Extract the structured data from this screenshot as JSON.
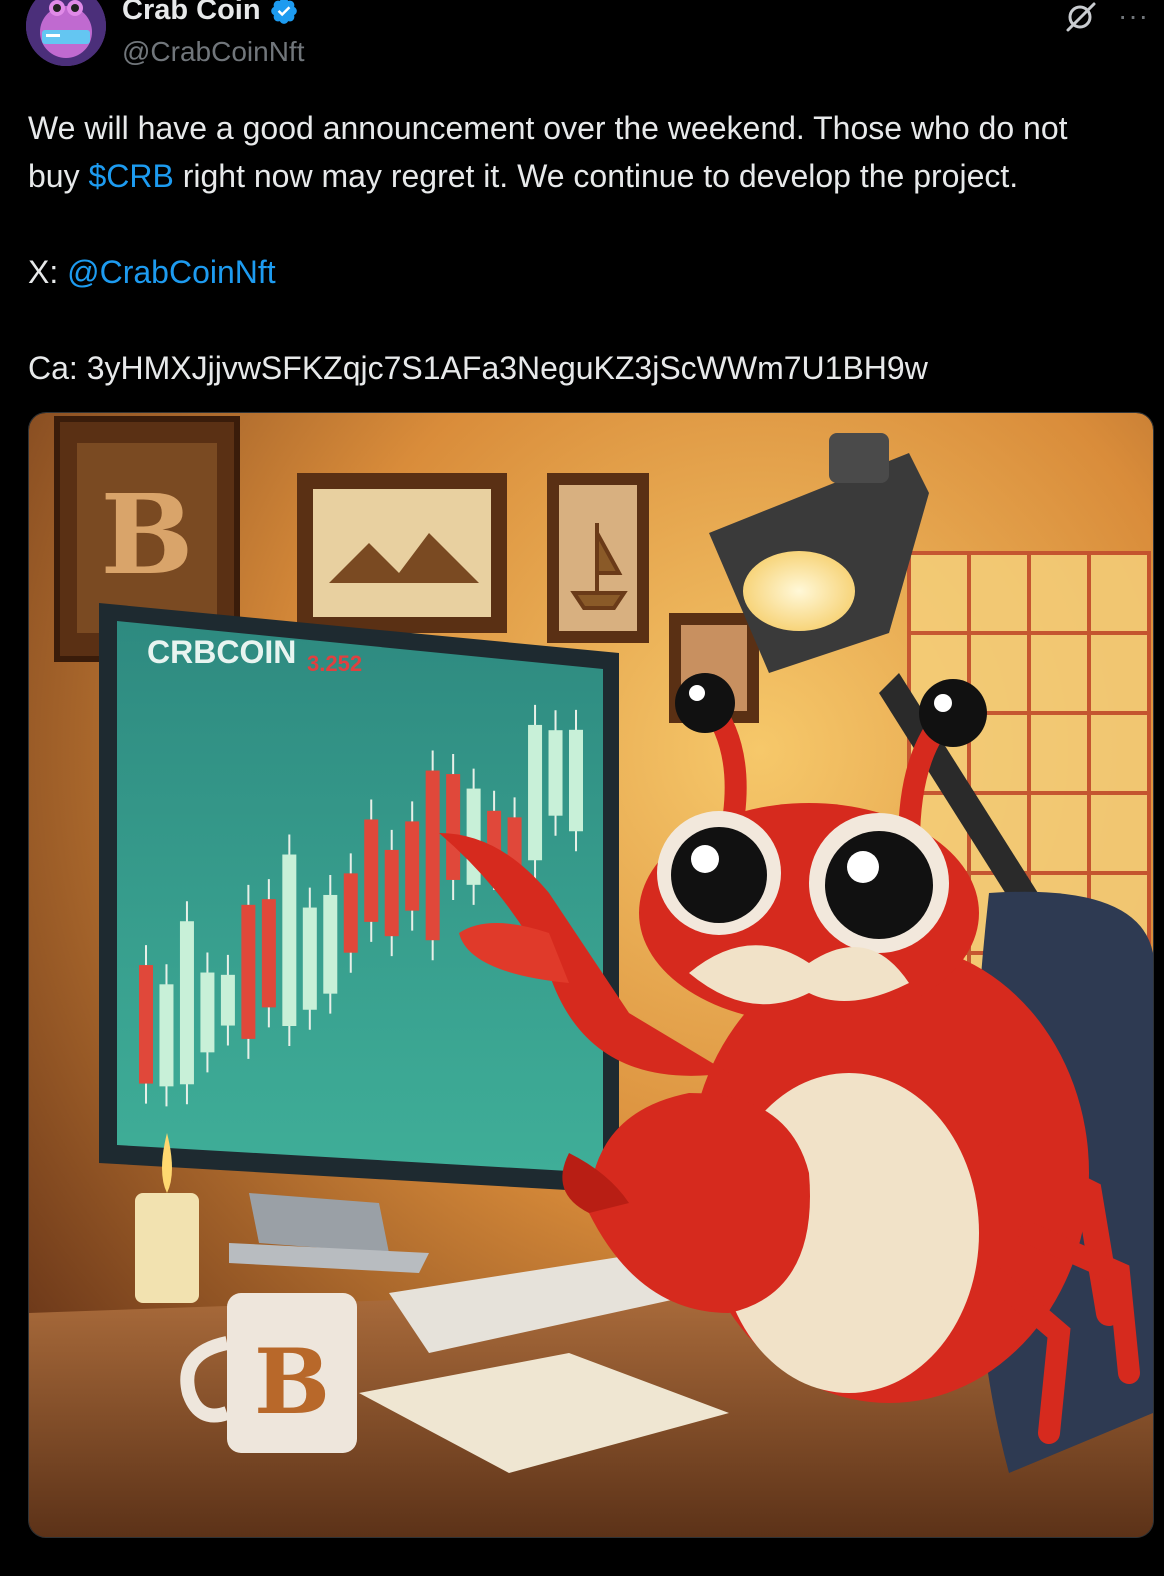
{
  "author": {
    "display_name": "Crab Coin",
    "handle": "@CrabCoinNft",
    "verified": true,
    "avatar_icon": "crab-avatar"
  },
  "header_actions": {
    "grok_icon": "grok-icon",
    "more_label": "···"
  },
  "tweet": {
    "line1": "We will have a good announcement over the weekend. Those who do not",
    "line2_prefix": "buy ",
    "cashtag": "$CRB",
    "line2_suffix": " right now may regret it. We continue to develop the project.",
    "x_label": "X: ",
    "x_mention": "@CrabCoinNft",
    "ca_label": "Ca: ",
    "ca_value": "3yHMXJjjvwSFKZqjc7S1AFa3NeguKZ3jScWWm7U1BH9w"
  },
  "image": {
    "screen_title": "CRBCOIN",
    "screen_price": "3.252",
    "frame_logo": "B",
    "mug_logo": "B"
  },
  "colors": {
    "background": "#000000",
    "text": "#e7e9ea",
    "muted": "#71767b",
    "link": "#1d9bf0",
    "verified": "#1d9bf0"
  }
}
